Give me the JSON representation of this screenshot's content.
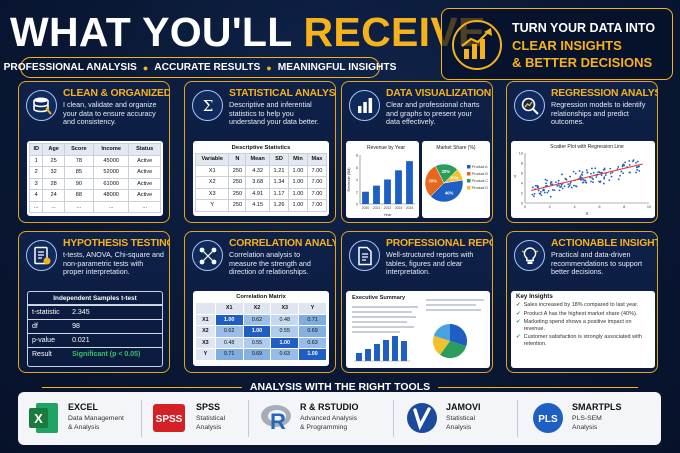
{
  "header": {
    "title_white": "WHAT YOU'LL ",
    "title_yellow": "RECEIVE",
    "subtitle": [
      "PROFESSIONAL ANALYSIS",
      "ACCURATE RESULTS",
      "MEANINGFUL INSIGHTS"
    ],
    "promo_line1": "TURN YOUR DATA INTO",
    "promo_line2": "CLEAR INSIGHTS",
    "promo_line3": "& BETTER DECISIONS"
  },
  "cards": {
    "clean": {
      "title": "CLEAN & ORGANIZED DATA",
      "desc": "I clean, validate and organize your data to ensure accuracy and consistency.",
      "table": {
        "headers": [
          "ID",
          "Age",
          "Score",
          "Income",
          "Status"
        ],
        "rows": [
          [
            "1",
            "25",
            "78",
            "45000",
            "Active"
          ],
          [
            "2",
            "32",
            "85",
            "52000",
            "Active"
          ],
          [
            "3",
            "28",
            "90",
            "61000",
            "Active"
          ],
          [
            "4",
            "24",
            "88",
            "48000",
            "Active"
          ],
          [
            "...",
            "...",
            "...",
            "...",
            "..."
          ]
        ]
      }
    },
    "stats": {
      "title": "STATISTICAL ANALYSIS",
      "desc": "Descriptive and inferential statistics to help you understand your data better.",
      "table": {
        "caption": "Descriptive Statistics",
        "headers": [
          "Variable",
          "N",
          "Mean",
          "SD",
          "Min",
          "Max"
        ],
        "rows": [
          [
            "X1",
            "250",
            "4.32",
            "1.21",
            "1.00",
            "7.00"
          ],
          [
            "X2",
            "250",
            "3.68",
            "1.34",
            "1.00",
            "7.00"
          ],
          [
            "X3",
            "250",
            "4.91",
            "1.17",
            "1.00",
            "7.00"
          ],
          [
            "Y",
            "250",
            "4.15",
            "1.26",
            "1.00",
            "7.00"
          ]
        ]
      }
    },
    "viz": {
      "title": "DATA VISUALIZATION",
      "desc": "Clear and professional charts and graphs to present your data effectively."
    },
    "regression": {
      "title": "REGRESSION ANALYSIS",
      "desc": "Regression models to identify relationships and predict outcomes."
    },
    "hypothesis": {
      "title": "HYPOTHESIS TESTING",
      "desc": "t-tests, ANOVA, Chi-square and non-parametric tests with proper interpretation.",
      "table": {
        "caption": "Independent Samples t-test",
        "rows": [
          [
            "t-statistic",
            "2.345"
          ],
          [
            "df",
            "98"
          ],
          [
            "p-value",
            "0.021"
          ],
          [
            "Result",
            "Significant (p < 0.05)"
          ]
        ]
      }
    },
    "correlation": {
      "title": "CORRELATION ANALYSIS",
      "desc": "Correlation analysis to measure the strength and direction of relationships.",
      "matrix": {
        "caption": "Correlation Matrix",
        "headers": [
          "",
          "X1",
          "X2",
          "X3",
          "Y"
        ],
        "rows": [
          [
            "X1",
            "1.00",
            "0.62",
            "0.48",
            "0.71"
          ],
          [
            "X2",
            "0.62",
            "1.00",
            "0.55",
            "0.69"
          ],
          [
            "X3",
            "0.48",
            "0.55",
            "1.00",
            "0.63"
          ],
          [
            "Y",
            "0.71",
            "0.69",
            "0.63",
            "1.00"
          ]
        ]
      }
    },
    "reports": {
      "title": "PROFESSIONAL REPORTS",
      "desc": "Well-structured reports with tables, figures and clear interpretation.",
      "doc_title": "Executive Summary"
    },
    "insights": {
      "title": "ACTIONABLE INSIGHTS",
      "desc": "Practical and data-driven recommendations to support better decisions.",
      "panel_title": "Key Insights",
      "items": [
        "Sales increased by 18% compared to last year.",
        "Product A has the highest market share (40%).",
        "Marketing spend shows a positive impact on revenue.",
        "Customer satisfaction is strongly associated with retention."
      ]
    }
  },
  "chart_data": [
    {
      "type": "bar",
      "title": "Revenue by Year",
      "categories": [
        "2020",
        "2021",
        "2022",
        "2023",
        "2024"
      ],
      "values": [
        2,
        3,
        4,
        5.5,
        7
      ],
      "xlabel": "Year",
      "ylabel": "Revenue ($M)",
      "ylim": [
        0,
        8
      ],
      "yticks": [
        "0",
        "2",
        "4",
        "6",
        "8"
      ],
      "color": "#1f5fc4"
    },
    {
      "type": "pie",
      "title": "Market Share (%)",
      "labels": [
        "Product A",
        "Product B",
        "Product C",
        "Product D"
      ],
      "values": [
        40,
        30,
        20,
        10
      ],
      "value_labels": [
        "40%",
        "30%",
        "20%",
        "10%"
      ],
      "colors": [
        "#1f5fc4",
        "#e8671c",
        "#2a9d5c",
        "#f2c12e"
      ]
    },
    {
      "type": "scatter",
      "title": "Scatter Plot with Regression Line",
      "xlabel": "X",
      "ylabel": "Y",
      "xlim": [
        0,
        10
      ],
      "ylim": [
        0,
        10
      ],
      "xticks": [
        "0",
        "2",
        "4",
        "6",
        "8",
        "10"
      ],
      "yticks": [
        "0",
        "2",
        "4",
        "6",
        "8",
        "10"
      ],
      "regression_line": [
        [
          0.5,
          2.5
        ],
        [
          9.5,
          7.8
        ]
      ],
      "color": "#1f5fc4"
    }
  ],
  "tools": {
    "heading": "ANALYSIS WITH THE RIGHT TOOLS",
    "items": [
      {
        "name": "EXCEL",
        "d1": "Data Management",
        "d2": "& Analysis",
        "logo_text": "X",
        "color": "#1d7a3e"
      },
      {
        "name": "SPSS",
        "d1": "Statistical",
        "d2": "Analysis",
        "logo_text": "SPSS",
        "color": "#d62027"
      },
      {
        "name": "R & RSTUDIO",
        "d1": "Advanced Analysis",
        "d2": "& Programming",
        "logo_text": "R",
        "color": "#2568b8"
      },
      {
        "name": "JAMOVI",
        "d1": "Statistical",
        "d2": "Analysis",
        "logo_text": "J",
        "color": "#1b4a9c"
      },
      {
        "name": "SMARTPLS",
        "d1": "PLS-SEM",
        "d2": "Analysis",
        "logo_text": "PLS",
        "color": "#1f5fc4"
      }
    ]
  }
}
